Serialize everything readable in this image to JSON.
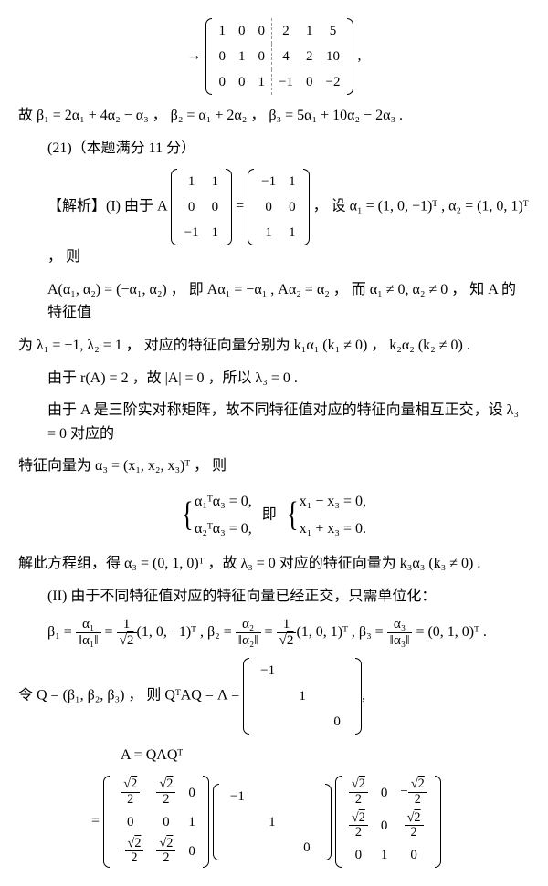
{
  "m1": {
    "rows": [
      [
        "1",
        "0",
        "0",
        "2",
        "1",
        "5"
      ],
      [
        "0",
        "1",
        "0",
        "4",
        "2",
        "10"
      ],
      [
        "0",
        "0",
        "1",
        "−1",
        "0",
        "−2"
      ]
    ]
  },
  "l1": "故 β₁ = 2α₁ + 4α₂ − α₃ ，  β₂ = α₁ + 2α₂ ，  β₃ = 5α₁ + 10α₂ − 2α₃ .",
  "l2": "(21)（本题满分 11 分）",
  "l3a": "【解析】(I) 由于 A",
  "m2": {
    "rows": [
      [
        "1",
        "1"
      ],
      [
        "0",
        "0"
      ],
      [
        "−1",
        "1"
      ]
    ]
  },
  "m3": {
    "rows": [
      [
        "−1",
        "1"
      ],
      [
        "0",
        "0"
      ],
      [
        "1",
        "1"
      ]
    ]
  },
  "l3b": "，  设 α₁ = (1, 0, −1)ᵀ , α₂ = (1, 0, 1)ᵀ ，  则",
  "l4": "A(α₁, α₂) = (−α₁, α₂) ，  即  Aα₁ = −α₁ , Aα₂ = α₂ ，  而 α₁ ≠ 0, α₂ ≠ 0 ，  知 A 的特征值",
  "l5": "为 λ₁ = −1, λ₂ = 1 ，  对应的特征向量分别为 k₁α₁ (k₁ ≠ 0) ， k₂α₂ (k₂ ≠ 0) .",
  "l6": "由于 r(A) = 2 ，故 |A| = 0 ，所以 λ₃ = 0 .",
  "l7": "由于 A 是三阶实对称矩阵，故不同特征值对应的特征向量相互正交，设 λ₃ = 0 对应的",
  "l8": "特征向量为 α₃ = (x₁, x₂, x₃)ᵀ ，  则",
  "eq1a": "α₁ᵀα₃ = 0,",
  "eq1b": "α₂ᵀα₃ = 0,",
  "eq1mid": "即",
  "eq2a": "x₁ − x₃ = 0,",
  "eq2b": "x₁ + x₃ = 0.",
  "l9": "解此方程组，得 α₃ = (0, 1, 0)ᵀ ，故 λ₃ = 0 对应的特征向量为 k₃α₃ (k₃ ≠ 0) .",
  "l10": "(II)   由于不同特征值对应的特征向量已经正交，只需单位化：",
  "lQ": "令 Q = (β₁, β₂, β₃) ，  则 QᵀAQ = Λ =",
  "mL": {
    "rows": [
      [
        "−1",
        "",
        ""
      ],
      [
        "",
        "1",
        ""
      ],
      [
        "",
        "",
        "0"
      ]
    ]
  },
  "lA": "A = QΛQᵀ",
  "mD": {
    "rows": [
      [
        "−1",
        "",
        ""
      ],
      [
        "",
        "1",
        ""
      ],
      [
        "",
        "",
        "0"
      ]
    ]
  }
}
